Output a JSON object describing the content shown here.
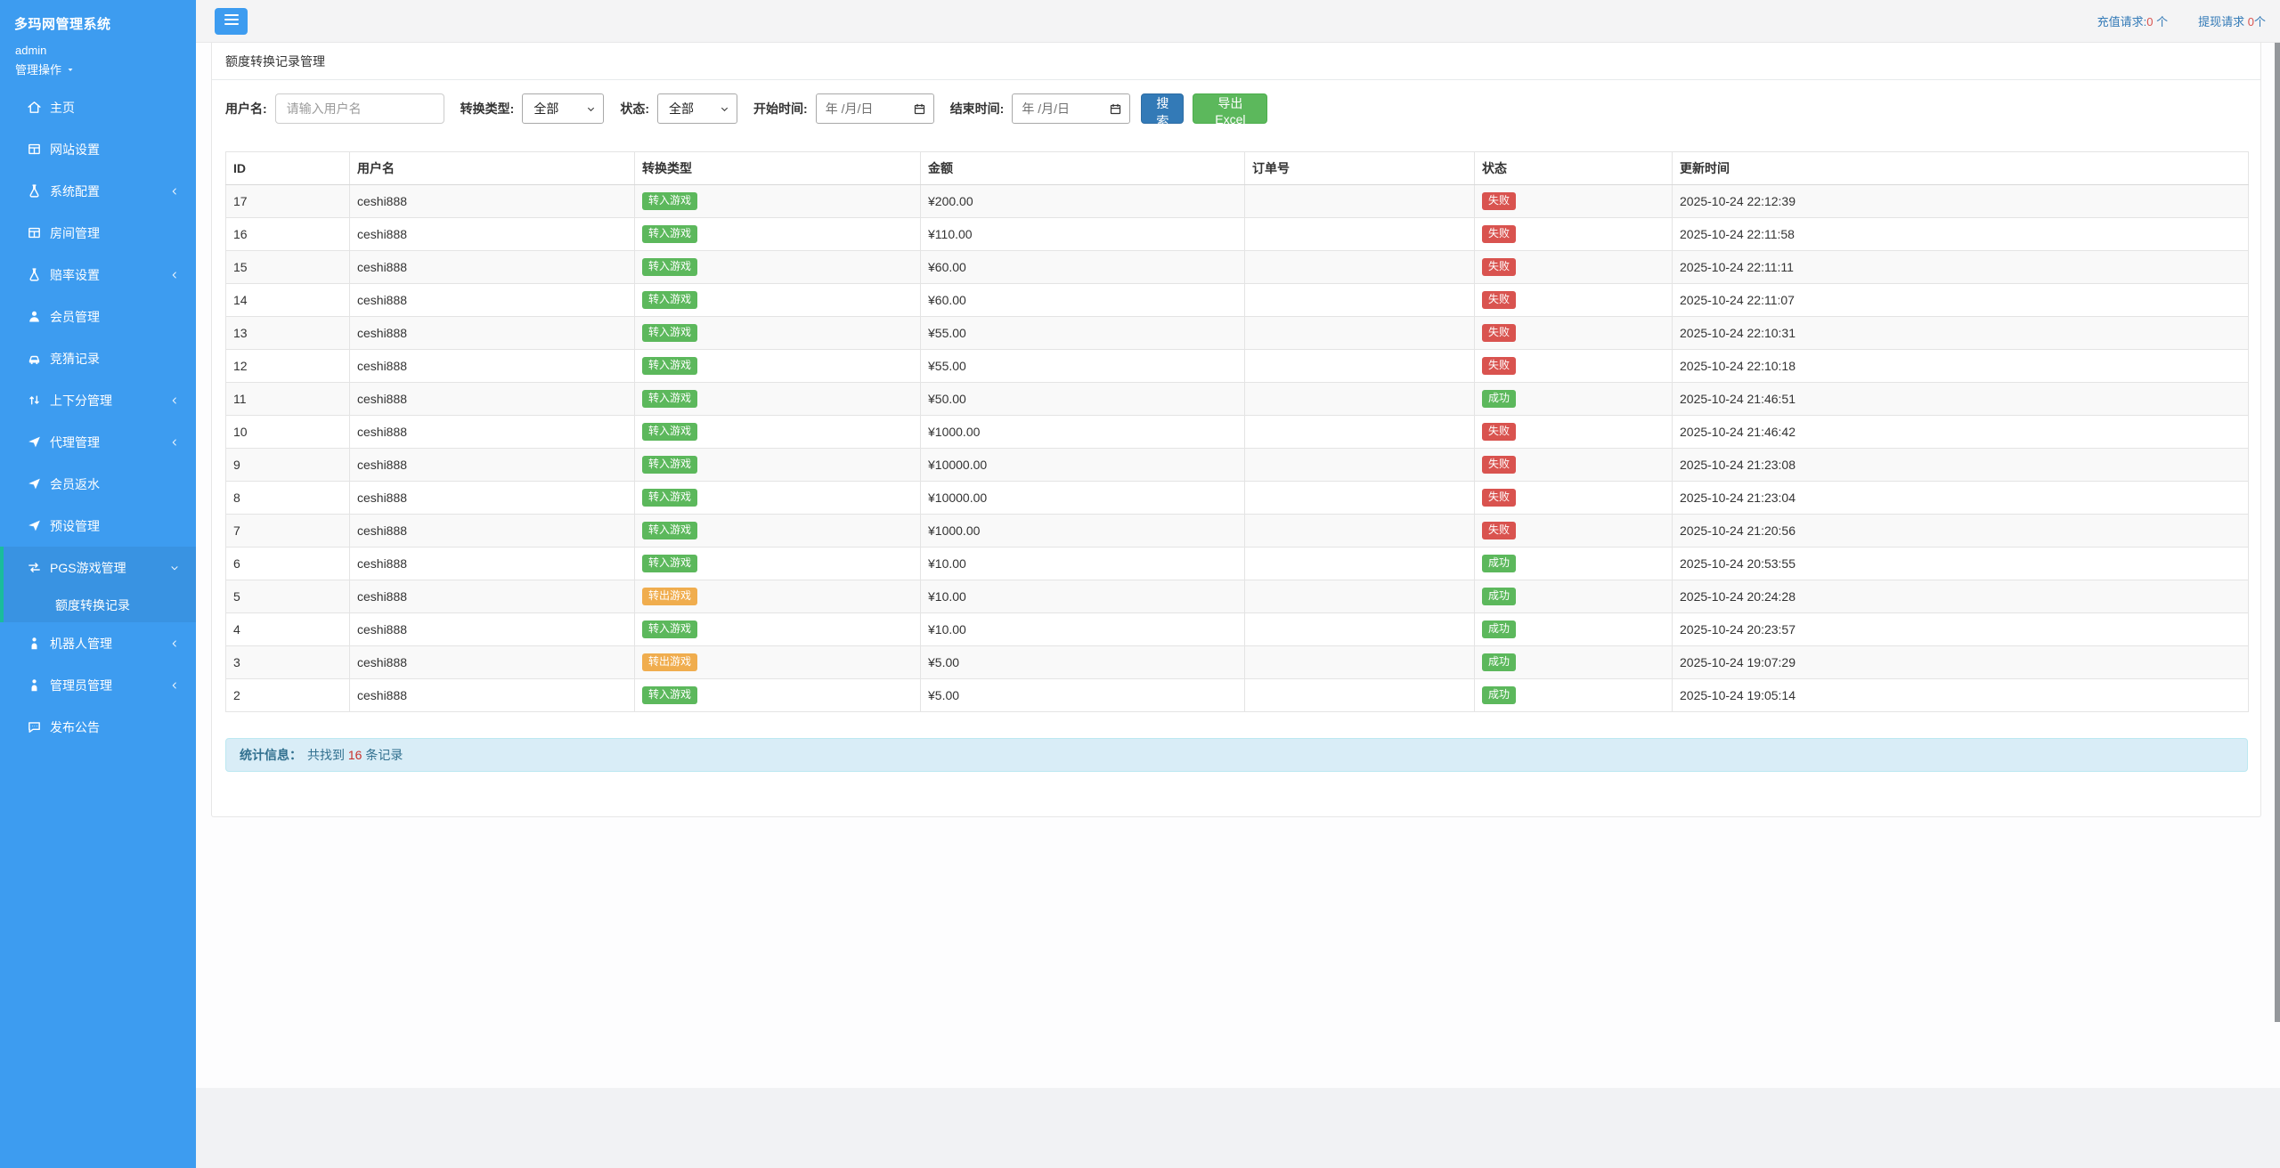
{
  "sidebar": {
    "app_title": "多玛网管理系统",
    "username": "admin",
    "user_action": "管理操作",
    "menu": [
      {
        "label": "主页",
        "icon": "home-icon"
      },
      {
        "label": "网站设置",
        "icon": "layout-icon"
      },
      {
        "label": "系统配置",
        "icon": "flask-icon",
        "arrow": "left"
      },
      {
        "label": "房间管理",
        "icon": "layout-icon"
      },
      {
        "label": "赔率设置",
        "icon": "flask-icon",
        "arrow": "left"
      },
      {
        "label": "会员管理",
        "icon": "user-icon"
      },
      {
        "label": "竞猜记录",
        "icon": "car-icon"
      },
      {
        "label": "上下分管理",
        "icon": "updown-icon",
        "arrow": "left"
      },
      {
        "label": "代理管理",
        "icon": "paper-plane-icon",
        "arrow": "left"
      },
      {
        "label": "会员返水",
        "icon": "paper-plane-icon"
      },
      {
        "label": "预设管理",
        "icon": "paper-plane-icon"
      },
      {
        "label": "PGS游戏管理",
        "icon": "exchange-icon",
        "arrow": "down",
        "expanded": true
      },
      {
        "label": "额度转换记录",
        "submenu": true,
        "active": true
      },
      {
        "label": "机器人管理",
        "icon": "person-icon",
        "arrow": "left"
      },
      {
        "label": "管理员管理",
        "icon": "person-icon",
        "arrow": "left"
      },
      {
        "label": "发布公告",
        "icon": "comment-icon"
      }
    ]
  },
  "topbar": {
    "recharge_label": "充值请求:",
    "recharge_count": "0",
    "recharge_unit": " 个",
    "withdraw_label": "提现请求 ",
    "withdraw_count": "0",
    "withdraw_unit": "个"
  },
  "panel": {
    "title": "额度转换记录管理"
  },
  "filters": {
    "username_label": "用户名:",
    "username_placeholder": "请输入用户名",
    "type_label": "转换类型:",
    "type_value": "全部",
    "status_label": "状态:",
    "status_value": "全部",
    "start_label": "开始时间:",
    "start_value": "年 /月/日",
    "end_label": "结束时间:",
    "end_value": "年 /月/日",
    "search_button": "搜索",
    "export_button": "导出Excel"
  },
  "table": {
    "headers": [
      "ID",
      "用户名",
      "转换类型",
      "金额",
      "订单号",
      "状态",
      "更新时间"
    ],
    "rows": [
      {
        "id": "17",
        "username": "ceshi888",
        "type": "转入游戏",
        "type_color": "green",
        "amount": "¥200.00",
        "order": "",
        "status": "失败",
        "status_color": "red",
        "time": "2025-10-24 22:12:39"
      },
      {
        "id": "16",
        "username": "ceshi888",
        "type": "转入游戏",
        "type_color": "green",
        "amount": "¥110.00",
        "order": "",
        "status": "失败",
        "status_color": "red",
        "time": "2025-10-24 22:11:58"
      },
      {
        "id": "15",
        "username": "ceshi888",
        "type": "转入游戏",
        "type_color": "green",
        "amount": "¥60.00",
        "order": "",
        "status": "失败",
        "status_color": "red",
        "time": "2025-10-24 22:11:11"
      },
      {
        "id": "14",
        "username": "ceshi888",
        "type": "转入游戏",
        "type_color": "green",
        "amount": "¥60.00",
        "order": "",
        "status": "失败",
        "status_color": "red",
        "time": "2025-10-24 22:11:07"
      },
      {
        "id": "13",
        "username": "ceshi888",
        "type": "转入游戏",
        "type_color": "green",
        "amount": "¥55.00",
        "order": "",
        "status": "失败",
        "status_color": "red",
        "time": "2025-10-24 22:10:31"
      },
      {
        "id": "12",
        "username": "ceshi888",
        "type": "转入游戏",
        "type_color": "green",
        "amount": "¥55.00",
        "order": "",
        "status": "失败",
        "status_color": "red",
        "time": "2025-10-24 22:10:18"
      },
      {
        "id": "11",
        "username": "ceshi888",
        "type": "转入游戏",
        "type_color": "green",
        "amount": "¥50.00",
        "order": "",
        "status": "成功",
        "status_color": "green",
        "time": "2025-10-24 21:46:51"
      },
      {
        "id": "10",
        "username": "ceshi888",
        "type": "转入游戏",
        "type_color": "green",
        "amount": "¥1000.00",
        "order": "",
        "status": "失败",
        "status_color": "red",
        "time": "2025-10-24 21:46:42"
      },
      {
        "id": "9",
        "username": "ceshi888",
        "type": "转入游戏",
        "type_color": "green",
        "amount": "¥10000.00",
        "order": "",
        "status": "失败",
        "status_color": "red",
        "time": "2025-10-24 21:23:08"
      },
      {
        "id": "8",
        "username": "ceshi888",
        "type": "转入游戏",
        "type_color": "green",
        "amount": "¥10000.00",
        "order": "",
        "status": "失败",
        "status_color": "red",
        "time": "2025-10-24 21:23:04"
      },
      {
        "id": "7",
        "username": "ceshi888",
        "type": "转入游戏",
        "type_color": "green",
        "amount": "¥1000.00",
        "order": "",
        "status": "失败",
        "status_color": "red",
        "time": "2025-10-24 21:20:56"
      },
      {
        "id": "6",
        "username": "ceshi888",
        "type": "转入游戏",
        "type_color": "green",
        "amount": "¥10.00",
        "order": "",
        "status": "成功",
        "status_color": "green",
        "time": "2025-10-24 20:53:55"
      },
      {
        "id": "5",
        "username": "ceshi888",
        "type": "转出游戏",
        "type_color": "orange",
        "amount": "¥10.00",
        "order": "",
        "status": "成功",
        "status_color": "green",
        "time": "2025-10-24 20:24:28"
      },
      {
        "id": "4",
        "username": "ceshi888",
        "type": "转入游戏",
        "type_color": "green",
        "amount": "¥10.00",
        "order": "",
        "status": "成功",
        "status_color": "green",
        "time": "2025-10-24 20:23:57"
      },
      {
        "id": "3",
        "username": "ceshi888",
        "type": "转出游戏",
        "type_color": "orange",
        "amount": "¥5.00",
        "order": "",
        "status": "成功",
        "status_color": "green",
        "time": "2025-10-24 19:07:29"
      },
      {
        "id": "2",
        "username": "ceshi888",
        "type": "转入游戏",
        "type_color": "green",
        "amount": "¥5.00",
        "order": "",
        "status": "成功",
        "status_color": "green",
        "time": "2025-10-24 19:05:14"
      }
    ]
  },
  "summary": {
    "label": "统计信息：",
    "text_before": "共找到 ",
    "count": "16",
    "text_after": " 条记录"
  }
}
